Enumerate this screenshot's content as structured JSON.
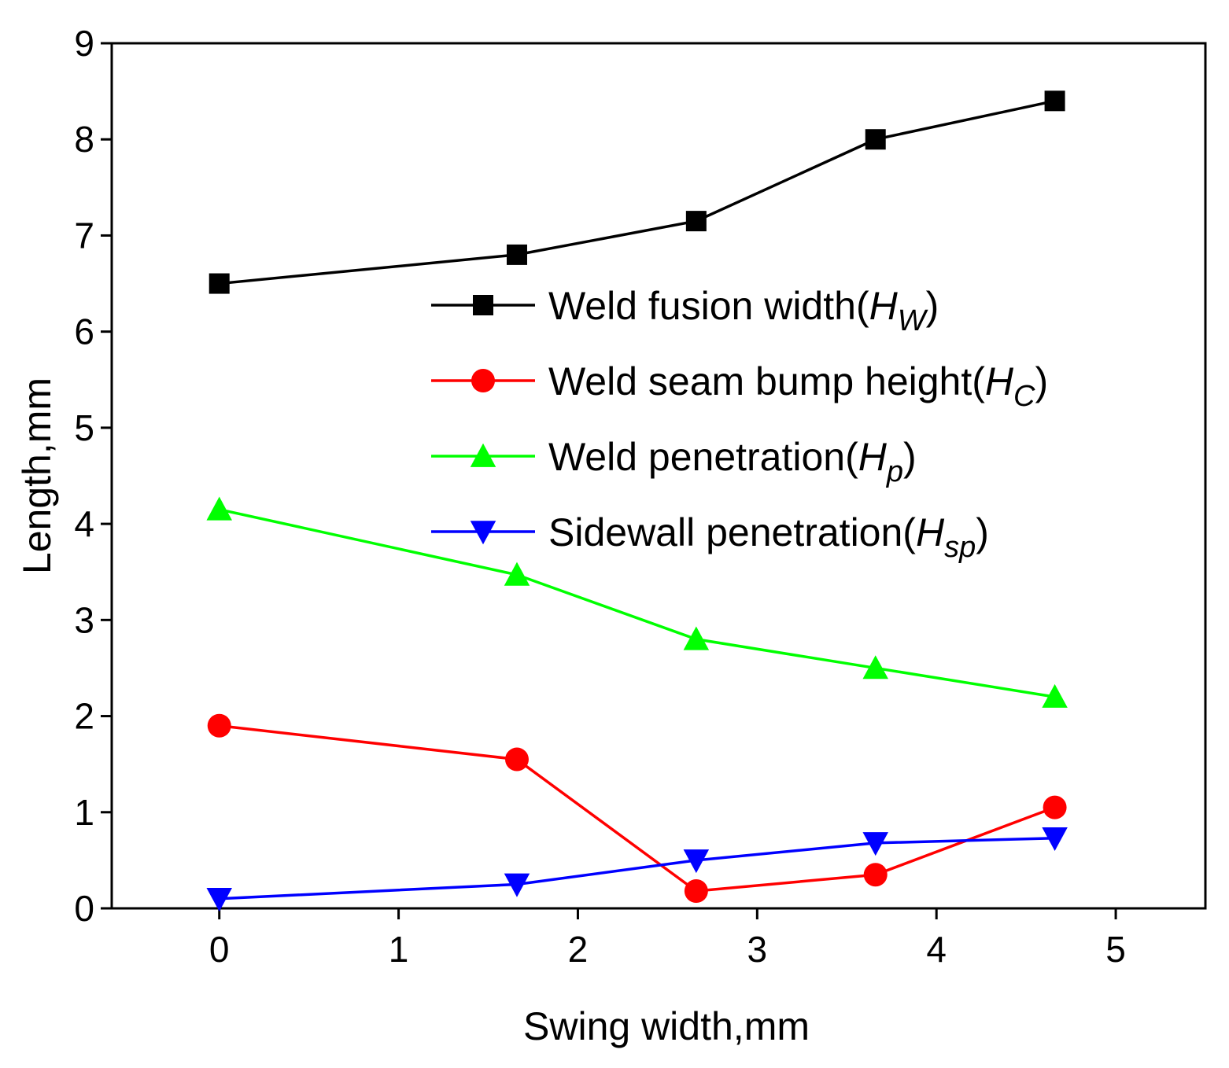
{
  "chart_data": {
    "type": "line",
    "title": "",
    "xlabel": "Swing width,mm",
    "ylabel": "Length,mm",
    "xlim": [
      -0.6,
      5.5
    ],
    "ylim": [
      0,
      9
    ],
    "xticks": [
      0,
      1,
      2,
      3,
      4,
      5
    ],
    "yticks": [
      0,
      1,
      2,
      3,
      4,
      5,
      6,
      7,
      8,
      9
    ],
    "grid": false,
    "legend_position": "upper-right",
    "x": [
      0,
      1.66,
      2.66,
      3.66,
      4.66
    ],
    "series": [
      {
        "name": "Weld fusion width",
        "symbol": "H",
        "subscript": "W",
        "color": "#000000",
        "marker": "square",
        "values": [
          6.5,
          6.8,
          7.15,
          8.0,
          8.4
        ]
      },
      {
        "name": "Weld seam bump height",
        "symbol": "H",
        "subscript": "C",
        "color": "#ff0000",
        "marker": "circle",
        "values": [
          1.9,
          1.55,
          0.18,
          0.35,
          1.05
        ]
      },
      {
        "name": "Weld penetration",
        "symbol": "H",
        "subscript": "p",
        "color": "#00ff00",
        "marker": "triangle-up",
        "values": [
          4.15,
          3.47,
          2.8,
          2.5,
          2.2
        ]
      },
      {
        "name": "Sidewall penetration",
        "symbol": "H",
        "subscript": "sp",
        "color": "#0000ff",
        "marker": "triangle-down",
        "values": [
          0.1,
          0.25,
          0.5,
          0.68,
          0.73
        ]
      }
    ]
  }
}
